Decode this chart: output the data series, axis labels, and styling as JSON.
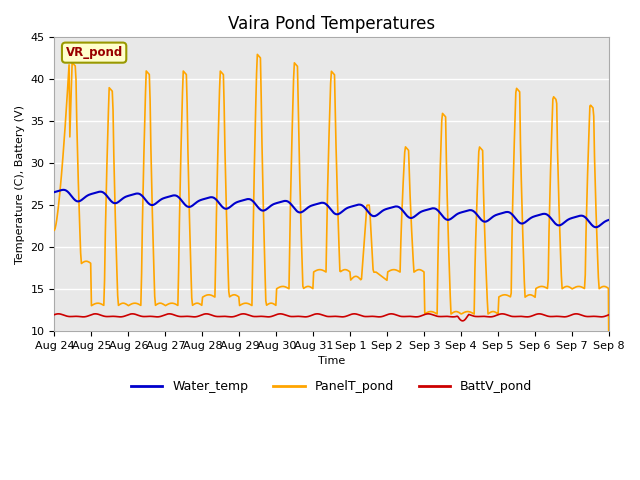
{
  "title": "Vaira Pond Temperatures",
  "ylabel": "Temperature (C), Battery (V)",
  "xlabel": "Time",
  "ylim": [
    10,
    45
  ],
  "yticks": [
    10,
    15,
    20,
    25,
    30,
    35,
    40,
    45
  ],
  "x_labels": [
    "Aug 24",
    "Aug 25",
    "Aug 26",
    "Aug 27",
    "Aug 28",
    "Aug 29",
    "Aug 30",
    "Aug 31",
    "Sep 1",
    "Sep 2",
    "Sep 3",
    "Sep 4",
    "Sep 5",
    "Sep 6",
    "Sep 7",
    "Sep 8"
  ],
  "water_color": "#0000cc",
  "panel_color": "#ffa500",
  "batt_color": "#cc0000",
  "legend_box_color": "#ffffcc",
  "legend_box_edge": "#999900",
  "legend_text_color": "#990000",
  "outer_bg": "#ffffff",
  "inner_bg": "#e8e8e8",
  "grid_color": "#d8d8d8",
  "title_fontsize": 12,
  "axis_fontsize": 8,
  "legend_fontsize": 9,
  "panel_day_peaks": [
    42.0,
    18.5,
    39.0,
    34.5,
    13.5,
    41.0,
    41.5,
    13.5,
    41.0,
    40.5,
    15.5,
    43.5,
    41.0,
    15.5,
    42.0,
    41.0,
    17.5,
    42.0,
    41.0,
    17.0,
    40.5,
    41.0,
    13.5,
    42.0,
    25.0,
    17.5,
    16.0,
    32.0,
    17.0,
    32.5,
    18.0,
    36.0,
    32.0,
    27.0,
    39.0,
    15.0,
    27.0,
    38.0,
    15.5,
    37.5,
    15.5
  ],
  "panel_day_mins": [
    22.0,
    13.5,
    13.0,
    13.0,
    13.0,
    14.0,
    13.0,
    15.5,
    17.5,
    17.5,
    16.0,
    12.0,
    14.0,
    14.5,
    15.0,
    15.5,
    13.5,
    14.0,
    15.5,
    17.5,
    13.0,
    18.0,
    17.5,
    12.0,
    18.0,
    15.5,
    14.0,
    12.0,
    14.5,
    12.0,
    12.0,
    14.0,
    12.0,
    14.5,
    12.0,
    15.5,
    12.0,
    14.0,
    15.5,
    12.0,
    15.5
  ]
}
